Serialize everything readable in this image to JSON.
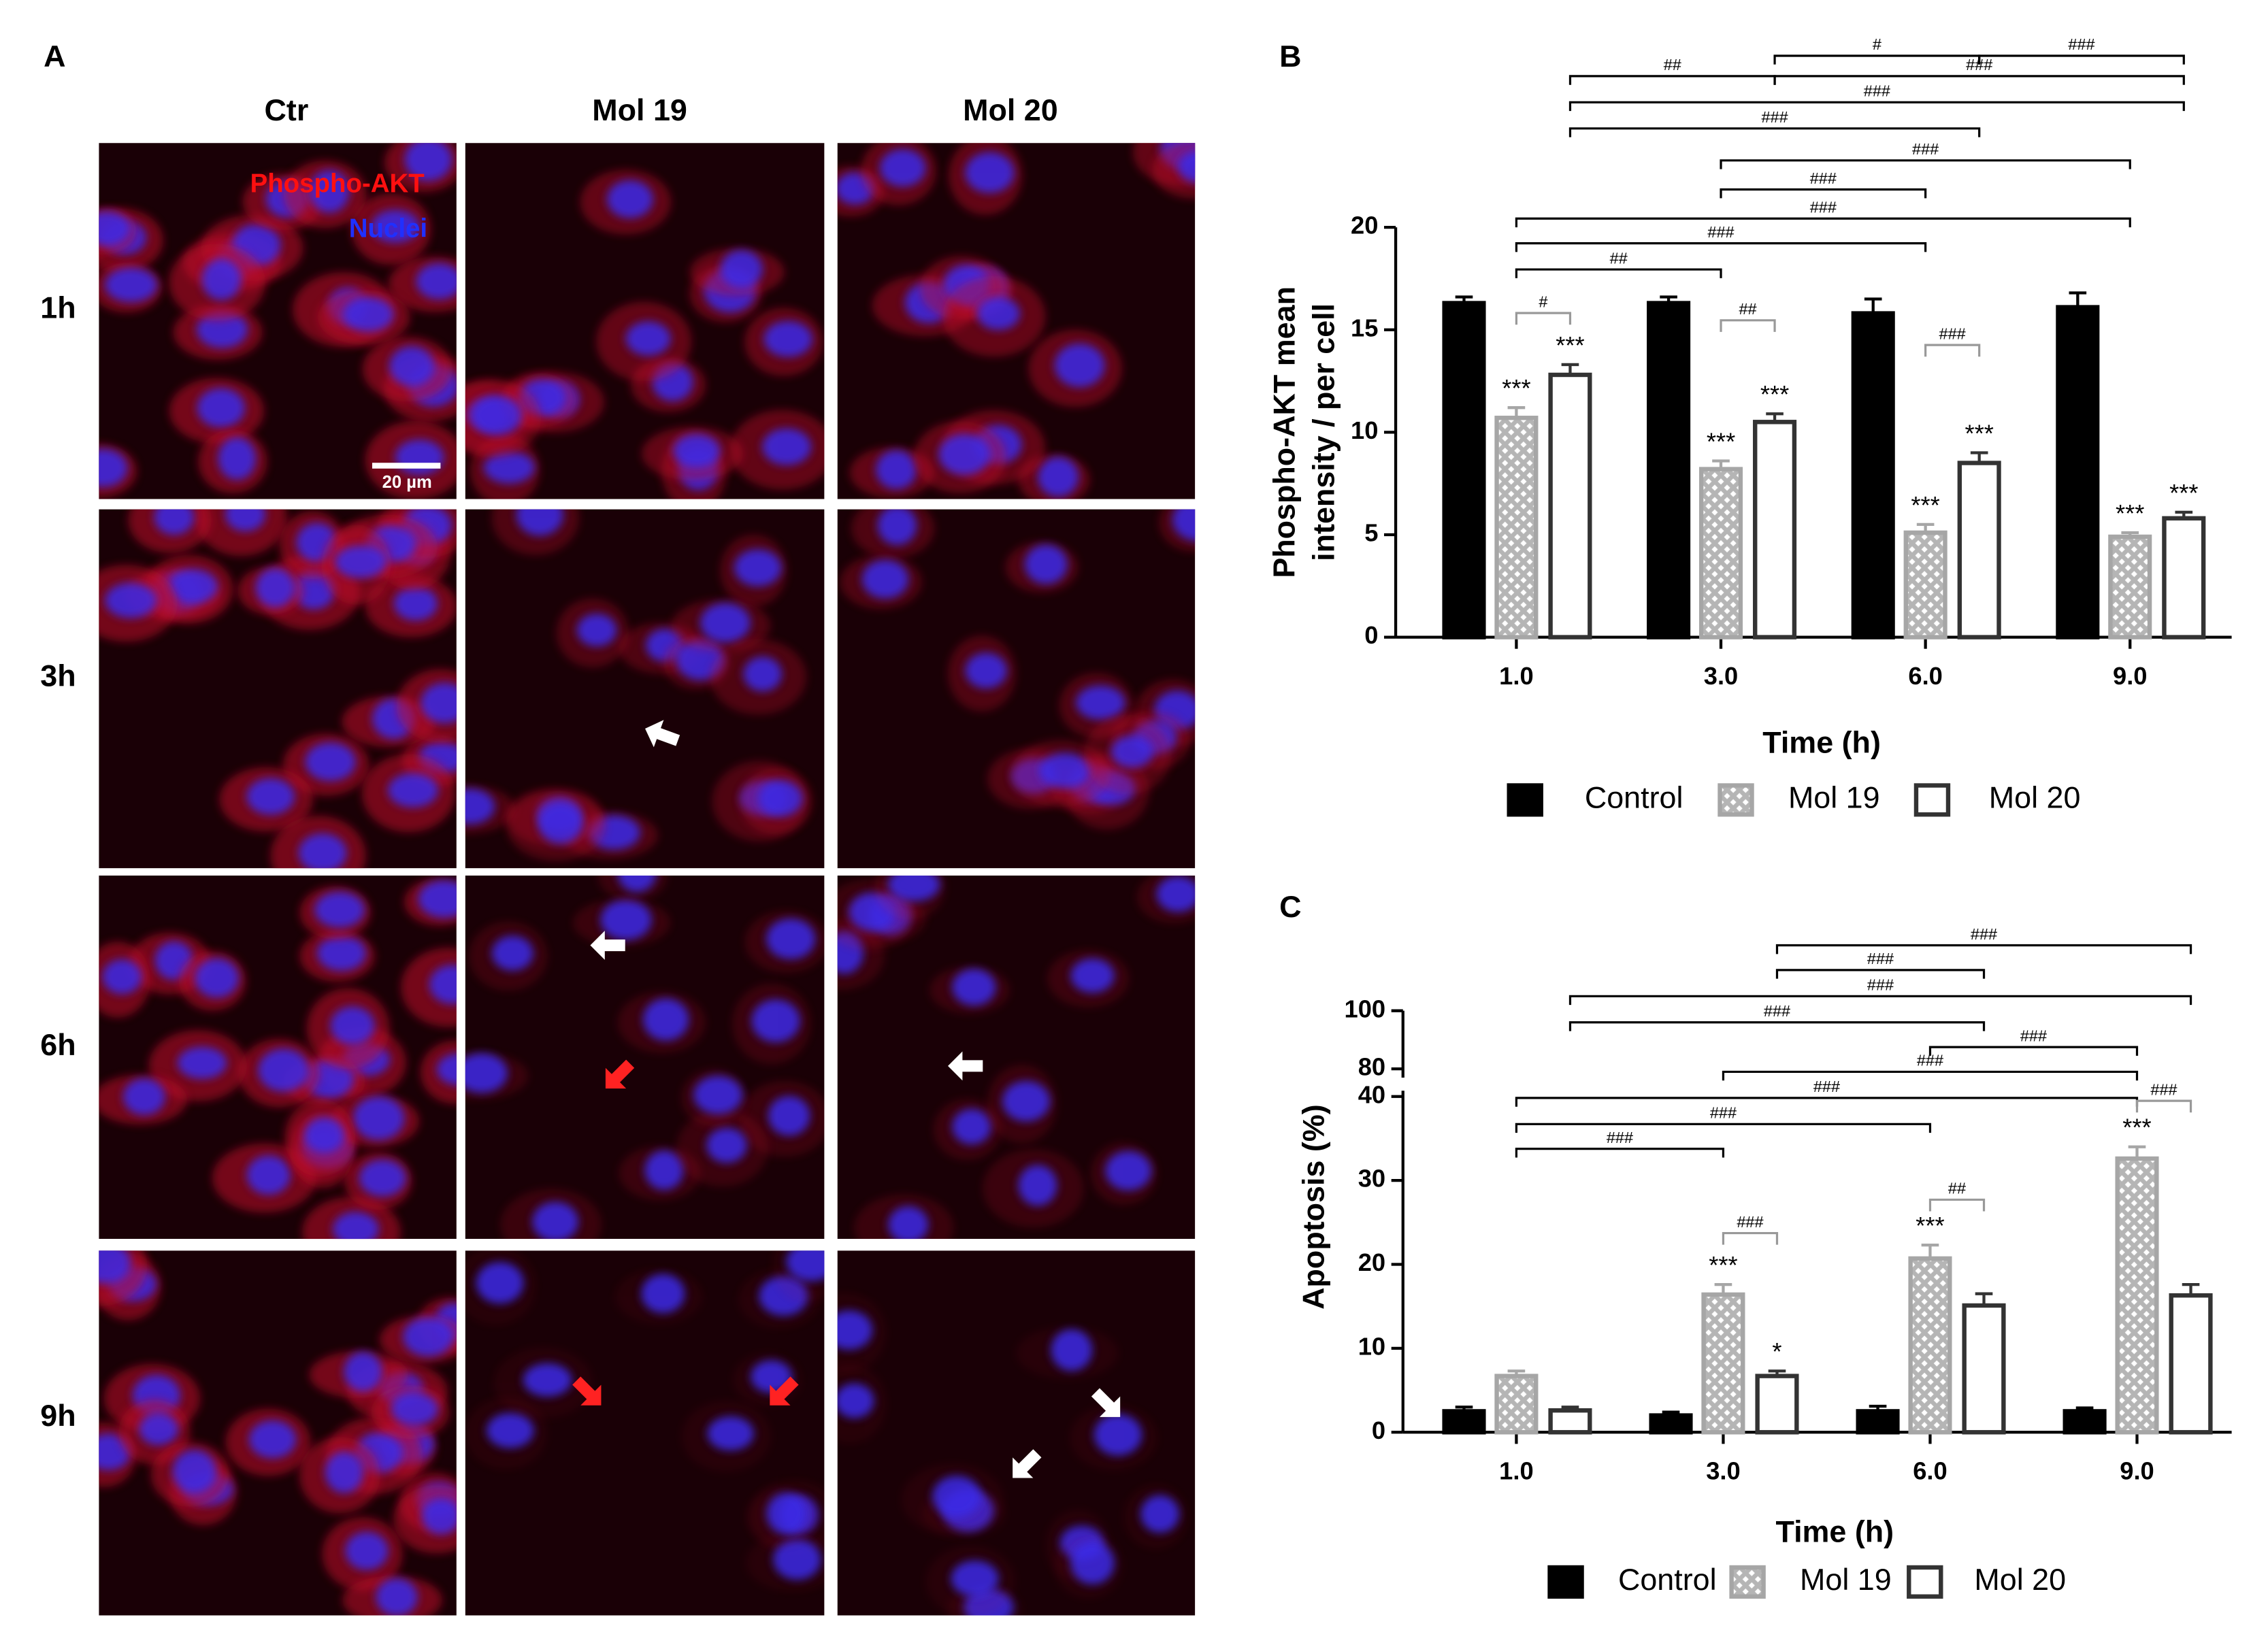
{
  "panel_a": {
    "label": "A",
    "columns": [
      "Ctr",
      "Mol 19",
      "Mol 20"
    ],
    "rows": [
      "1h",
      "3h",
      "6h",
      "9h"
    ],
    "stain_labels": [
      "Phospho-AKT",
      "Nuclei"
    ],
    "scale_bar": "20 µm"
  },
  "chart_data": [
    {
      "type": "bar",
      "label": "B",
      "ylabel": [
        "Phospho-AKT mean",
        "intensity / per cell"
      ],
      "xlabel": "Time (h)",
      "categories": [
        "1.0",
        "3.0",
        "6.0",
        "9.0"
      ],
      "ylim": [
        0,
        20
      ],
      "yticks": [
        0,
        5,
        10,
        15,
        20
      ],
      "series": [
        {
          "name": "Control",
          "color": "#000000",
          "fill_style": "solid",
          "values": [
            16.3,
            16.3,
            15.8,
            16.1
          ],
          "errors": [
            0.3,
            0.3,
            0.7,
            0.7
          ]
        },
        {
          "name": "Mol 19",
          "color": "#a6a6a6",
          "fill_style": "hatch",
          "values": [
            10.7,
            8.2,
            5.1,
            4.9
          ],
          "errors": [
            0.5,
            0.4,
            0.4,
            0.2
          ],
          "significance": [
            "***",
            "***",
            "***",
            "***"
          ]
        },
        {
          "name": "Mol 20",
          "color": "#333333",
          "fill_style": "white",
          "values": [
            12.8,
            10.5,
            8.5,
            5.8
          ],
          "errors": [
            0.5,
            0.4,
            0.5,
            0.3
          ],
          "significance": [
            "***",
            "***",
            "***",
            "***"
          ]
        }
      ],
      "comparisons": [
        {
          "label": "##",
          "from": [
            2,
            0
          ],
          "to": [
            2,
            1
          ]
        },
        {
          "label": "#",
          "from": [
            2,
            1
          ],
          "to": [
            2,
            2
          ]
        },
        {
          "label": "###",
          "from": [
            2,
            2
          ],
          "to": [
            2,
            3
          ]
        },
        {
          "label": "###",
          "from": [
            2,
            1
          ],
          "to": [
            2,
            3
          ]
        },
        {
          "label": "###",
          "from": [
            2,
            0
          ],
          "to": [
            2,
            3
          ]
        },
        {
          "label": "###",
          "from": [
            2,
            0
          ],
          "to": [
            2,
            2
          ]
        },
        {
          "label": "###",
          "from": [
            1,
            1
          ],
          "to": [
            1,
            3
          ]
        },
        {
          "label": "###",
          "from": [
            1,
            1
          ],
          "to": [
            1,
            2
          ]
        },
        {
          "label": "###",
          "from": [
            1,
            0
          ],
          "to": [
            1,
            3
          ]
        },
        {
          "label": "###",
          "from": [
            1,
            0
          ],
          "to": [
            1,
            2
          ]
        },
        {
          "label": "##",
          "from": [
            1,
            0
          ],
          "to": [
            1,
            1
          ]
        },
        {
          "label": "#",
          "from": [
            1,
            0
          ],
          "to": [
            2,
            0
          ]
        },
        {
          "label": "##",
          "from": [
            1,
            1
          ],
          "to": [
            2,
            1
          ]
        },
        {
          "label": "###",
          "from": [
            1,
            2
          ],
          "to": [
            2,
            2
          ]
        }
      ]
    },
    {
      "type": "bar",
      "label": "C",
      "ylabel": [
        "Apoptosis (%)"
      ],
      "xlabel": "Time (h)",
      "categories": [
        "1.0",
        "3.0",
        "6.0",
        "9.0"
      ],
      "ylim": [
        0,
        100
      ],
      "axis_break": [
        40,
        80
      ],
      "yticks": [
        0,
        10,
        20,
        30,
        40,
        80,
        100
      ],
      "series": [
        {
          "name": "Control",
          "color": "#000000",
          "fill_style": "solid",
          "values": [
            2.5,
            2.0,
            2.5,
            2.5
          ],
          "errors": [
            0.5,
            0.4,
            0.6,
            0.4
          ]
        },
        {
          "name": "Mol 19",
          "color": "#a6a6a6",
          "fill_style": "hatch",
          "values": [
            6.7,
            16.4,
            20.7,
            32.6
          ],
          "errors": [
            0.6,
            1.2,
            1.6,
            1.4
          ],
          "significance": [
            null,
            "***",
            "***",
            "***"
          ]
        },
        {
          "name": "Mol 20",
          "color": "#333333",
          "fill_style": "white",
          "values": [
            2.6,
            6.7,
            15.1,
            16.3
          ],
          "errors": [
            0.4,
            0.6,
            1.4,
            1.3
          ],
          "significance": [
            null,
            "*",
            null,
            null
          ]
        }
      ],
      "comparisons": [
        {
          "label": "###",
          "from": [
            2,
            1
          ],
          "to": [
            2,
            3
          ]
        },
        {
          "label": "###",
          "from": [
            2,
            1
          ],
          "to": [
            2,
            2
          ]
        },
        {
          "label": "###",
          "from": [
            2,
            0
          ],
          "to": [
            2,
            3
          ]
        },
        {
          "label": "###",
          "from": [
            2,
            0
          ],
          "to": [
            2,
            2
          ]
        },
        {
          "label": "###",
          "from": [
            1,
            2
          ],
          "to": [
            1,
            3
          ]
        },
        {
          "label": "###",
          "from": [
            1,
            1
          ],
          "to": [
            1,
            3
          ]
        },
        {
          "label": "###",
          "from": [
            1,
            0
          ],
          "to": [
            1,
            3
          ]
        },
        {
          "label": "###",
          "from": [
            1,
            0
          ],
          "to": [
            1,
            2
          ]
        },
        {
          "label": "###",
          "from": [
            1,
            0
          ],
          "to": [
            1,
            1
          ]
        },
        {
          "label": "###",
          "from": [
            1,
            1
          ],
          "to": [
            2,
            1
          ]
        },
        {
          "label": "##",
          "from": [
            1,
            2
          ],
          "to": [
            2,
            2
          ]
        },
        {
          "label": "###",
          "from": [
            1,
            3
          ],
          "to": [
            2,
            3
          ]
        }
      ]
    }
  ]
}
